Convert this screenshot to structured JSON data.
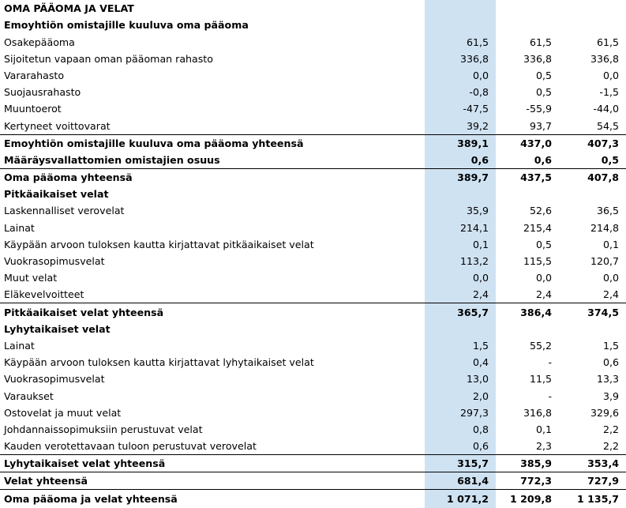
{
  "title": "OMA PÄÄOMA JA VELAT",
  "rows": [
    {
      "label": "Emoyhtiön omistajille kuuluva oma pääoma",
      "v1": "",
      "v2": "",
      "v3": "",
      "style": "bold"
    },
    {
      "label": "Osakepääoma",
      "v1": "61,5",
      "v2": "61,5",
      "v3": "61,5",
      "style": ""
    },
    {
      "label": "Sijoitetun vapaan oman pääoman rahasto",
      "v1": "336,8",
      "v2": "336,8",
      "v3": "336,8",
      "style": ""
    },
    {
      "label": "Vararahasto",
      "v1": "0,0",
      "v2": "0,5",
      "v3": "0,0",
      "style": ""
    },
    {
      "label": "Suojausrahasto",
      "v1": "-0,8",
      "v2": "0,5",
      "v3": "-1,5",
      "style": ""
    },
    {
      "label": "Muuntoerot",
      "v1": "-47,5",
      "v2": "-55,9",
      "v3": "-44,0",
      "style": ""
    },
    {
      "label": "Kertyneet voittovarat",
      "v1": "39,2",
      "v2": "93,7",
      "v3": "54,5",
      "style": ""
    },
    {
      "label": "Emoyhtiön omistajille kuuluva oma pääoma yhteensä",
      "v1": "389,1",
      "v2": "437,0",
      "v3": "407,3",
      "style": "total"
    },
    {
      "label": "Määräysvallattomien omistajien osuus",
      "v1": "0,6",
      "v2": "0,6",
      "v3": "0,5",
      "style": "bold"
    },
    {
      "label": "Oma pääoma yhteensä",
      "v1": "389,7",
      "v2": "437,5",
      "v3": "407,8",
      "style": "total"
    },
    {
      "label": "Pitkäaikaiset velat",
      "v1": "",
      "v2": "",
      "v3": "",
      "style": "bold"
    },
    {
      "label": "Laskennalliset verovelat",
      "v1": "35,9",
      "v2": "52,6",
      "v3": "36,5",
      "style": ""
    },
    {
      "label": "Lainat",
      "v1": "214,1",
      "v2": "215,4",
      "v3": "214,8",
      "style": ""
    },
    {
      "label": "Käypään arvoon tuloksen kautta kirjattavat pitkäaikaiset velat",
      "v1": "0,1",
      "v2": "0,5",
      "v3": "0,1",
      "style": ""
    },
    {
      "label": "Vuokrasopimusvelat",
      "v1": "113,2",
      "v2": "115,5",
      "v3": "120,7",
      "style": ""
    },
    {
      "label": "Muut velat",
      "v1": "0,0",
      "v2": "0,0",
      "v3": "0,0",
      "style": ""
    },
    {
      "label": "Eläkevelvoitteet",
      "v1": "2,4",
      "v2": "2,4",
      "v3": "2,4",
      "style": ""
    },
    {
      "label": "Pitkäaikaiset velat yhteensä",
      "v1": "365,7",
      "v2": "386,4",
      "v3": "374,5",
      "style": "total"
    },
    {
      "label": "Lyhytaikaiset velat",
      "v1": "",
      "v2": "",
      "v3": "",
      "style": "bold"
    },
    {
      "label": "Lainat",
      "v1": "1,5",
      "v2": "55,2",
      "v3": "1,5",
      "style": ""
    },
    {
      "label": "Käypään arvoon tuloksen kautta kirjattavat lyhytaikaiset velat",
      "v1": "0,4",
      "v2": "-",
      "v3": "0,6",
      "style": ""
    },
    {
      "label": "Vuokrasopimusvelat",
      "v1": "13,0",
      "v2": "11,5",
      "v3": "13,3",
      "style": ""
    },
    {
      "label": "Varaukset",
      "v1": "2,0",
      "v2": "-",
      "v3": "3,9",
      "style": ""
    },
    {
      "label": "Ostovelat ja muut velat",
      "v1": "297,3",
      "v2": "316,8",
      "v3": "329,6",
      "style": ""
    },
    {
      "label": "Johdannaissopimuksiin perustuvat velat",
      "v1": "0,8",
      "v2": "0,1",
      "v3": "2,2",
      "style": ""
    },
    {
      "label": "Kauden verotettavaan tuloon perustuvat verovelat",
      "v1": "0,6",
      "v2": "2,3",
      "v3": "2,2",
      "style": ""
    },
    {
      "label": "Lyhytaikaiset velat yhteensä",
      "v1": "315,7",
      "v2": "385,9",
      "v3": "353,4",
      "style": "total"
    },
    {
      "label": "Velat yhteensä",
      "v1": "681,4",
      "v2": "772,3",
      "v3": "727,9",
      "style": "total"
    },
    {
      "label": "Oma pääoma ja velat yhteensä",
      "v1": "1 071,2",
      "v2": "1 209,8",
      "v3": "1 135,7",
      "style": "total"
    }
  ]
}
